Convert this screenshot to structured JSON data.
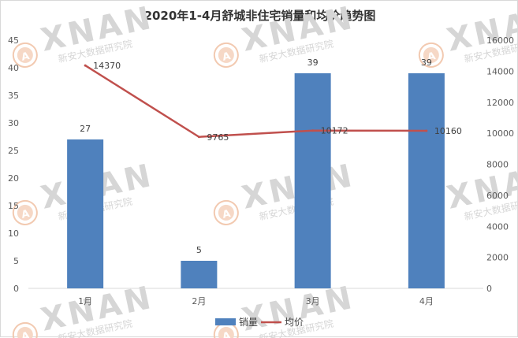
{
  "chart_data": {
    "type": "bar",
    "title": "2020年1-4月舒城非住宅销量和均价趋势图",
    "categories": [
      "1月",
      "2月",
      "3月",
      "4月"
    ],
    "series": [
      {
        "name": "销量",
        "type": "bar",
        "axis": "left",
        "values": [
          27,
          5,
          39,
          39
        ],
        "labels": [
          "27",
          "5",
          "39",
          "39"
        ],
        "color": "#4f81bd"
      },
      {
        "name": "均价",
        "type": "line",
        "axis": "right",
        "values": [
          14370,
          9765,
          10172,
          10160
        ],
        "labels": [
          "14370",
          "9765",
          "10172",
          "10160"
        ],
        "color": "#c0504d"
      }
    ],
    "y_left": {
      "min": 0,
      "max": 45,
      "step": 5,
      "ticks": [
        "0",
        "5",
        "10",
        "15",
        "20",
        "25",
        "30",
        "35",
        "40",
        "45"
      ]
    },
    "y_right": {
      "min": 0,
      "max": 16000,
      "step": 2000,
      "ticks": [
        "0",
        "2000",
        "4000",
        "6000",
        "8000",
        "10000",
        "12000",
        "14000",
        "16000"
      ]
    },
    "grid": false,
    "legend_position": "bottom"
  },
  "watermark": {
    "text": "XNAN",
    "subtext": "新安大数据研究院",
    "logo": "A",
    "color": "#d6d6d6"
  }
}
